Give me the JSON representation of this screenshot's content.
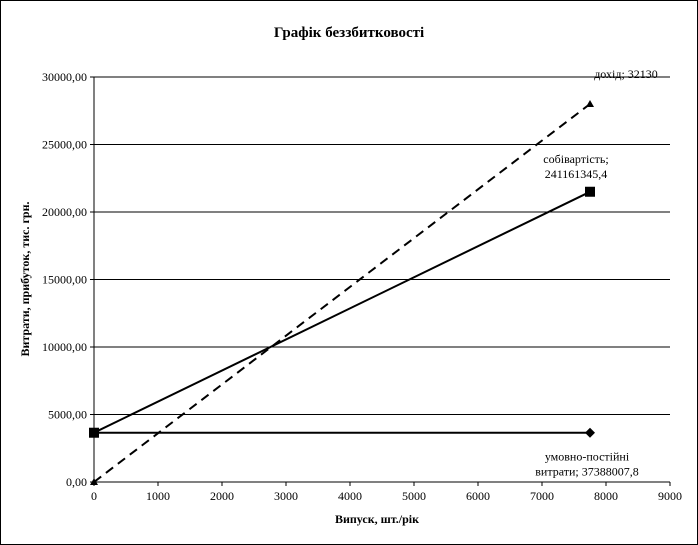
{
  "chart_data": {
    "type": "line",
    "title": "Графік беззбитковості",
    "xlabel": "Випуск, шт./рік",
    "ylabel": "Витрати, прибуток, тис. грн.",
    "xlim": [
      0,
      9000
    ],
    "ylim": [
      0,
      30000
    ],
    "x_ticks": [
      "0",
      "1000",
      "2000",
      "3000",
      "4000",
      "5000",
      "6000",
      "7000",
      "8000",
      "9000"
    ],
    "x_tick_values": [
      0,
      1000,
      2000,
      3000,
      4000,
      5000,
      6000,
      7000,
      8000,
      9000
    ],
    "y_ticks": [
      "0,00",
      "5000,00",
      "10000,00",
      "15000,00",
      "20000,00",
      "25000,00",
      "30000,00"
    ],
    "y_tick_values": [
      0,
      5000,
      10000,
      15000,
      20000,
      25000,
      30000
    ],
    "grid": "horizontal",
    "legend": "none",
    "series": [
      {
        "key": "revenue",
        "x": [
          0,
          7750
        ],
        "y": [
          0,
          28000
        ],
        "style": "dashed",
        "marker": "triangle",
        "color": "#000000"
      },
      {
        "key": "cost",
        "x": [
          0,
          7750
        ],
        "y": [
          3650,
          21500
        ],
        "style": "solid",
        "marker": "square",
        "color": "#000000"
      },
      {
        "key": "fixed",
        "x": [
          0,
          7750
        ],
        "y": [
          3650,
          3650
        ],
        "style": "solid",
        "marker": "diamond",
        "color": "#000000"
      }
    ],
    "annotations": [
      {
        "series": "revenue",
        "lines": [
          "дохід; 32130"
        ]
      },
      {
        "series": "cost",
        "lines": [
          "собівартість;",
          "241161345,4"
        ]
      },
      {
        "series": "fixed",
        "lines": [
          "умовно-постійні",
          "витрати; 37388007,8"
        ]
      }
    ]
  }
}
